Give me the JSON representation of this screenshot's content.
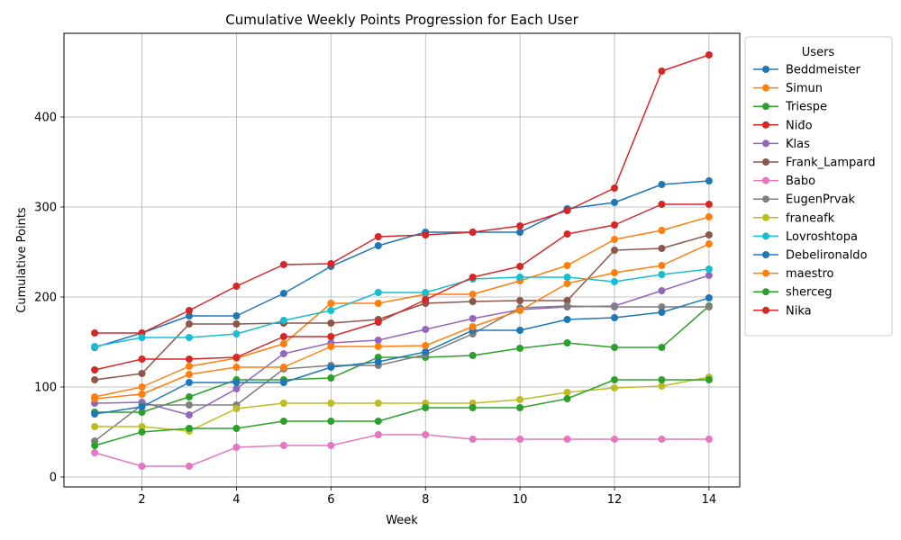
{
  "chart_data": {
    "type": "line",
    "title": "Cumulative Weekly Points Progression for Each User",
    "xlabel": "Week",
    "ylabel": "Cumulative Points",
    "x": [
      1,
      2,
      3,
      4,
      5,
      6,
      7,
      8,
      9,
      10,
      11,
      12,
      13,
      14
    ],
    "xlim": [
      0.35,
      14.65
    ],
    "ylim": [
      -11,
      493
    ],
    "xticks": [
      2,
      4,
      6,
      8,
      10,
      12,
      14
    ],
    "yticks": [
      0,
      100,
      200,
      300,
      400
    ],
    "grid": true,
    "legend": {
      "title": "Users",
      "placement": "outside-right"
    },
    "series": [
      {
        "name": "Beddmeister",
        "color": "#1f77b4",
        "values": [
          144,
          160,
          179,
          179,
          204,
          234,
          257,
          272,
          272,
          272,
          298,
          305,
          325,
          329
        ]
      },
      {
        "name": "Simun",
        "color": "#ff7f0e",
        "values": [
          89,
          100,
          123,
          132,
          148,
          193,
          193,
          203,
          203,
          218,
          235,
          264,
          274,
          289
        ]
      },
      {
        "name": "Triespe",
        "color": "#2ca02c",
        "values": [
          72,
          72,
          89,
          108,
          108,
          110,
          133,
          133,
          135,
          143,
          149,
          144,
          144,
          190
        ]
      },
      {
        "name": "Niđo",
        "color": "#d62728",
        "values": [
          160,
          160,
          185,
          212,
          236,
          237,
          267,
          269,
          272,
          279,
          296,
          321,
          451,
          469
        ]
      },
      {
        "name": "Klas",
        "color": "#9467bd",
        "values": [
          82,
          83,
          69,
          98,
          137,
          149,
          152,
          164,
          176,
          186,
          189,
          190,
          207,
          224
        ]
      },
      {
        "name": "Frank_Lampard",
        "color": "#8c564b",
        "values": [
          108,
          115,
          170,
          170,
          171,
          171,
          175,
          193,
          195,
          196,
          196,
          252,
          254,
          269
        ]
      },
      {
        "name": "Babo",
        "color": "#e377c2",
        "values": [
          27,
          12,
          12,
          33,
          35,
          35,
          47,
          47,
          42,
          42,
          42,
          42,
          42,
          42
        ]
      },
      {
        "name": "EugenPrvak",
        "color": "#7f7f7f",
        "values": [
          40,
          80,
          80,
          80,
          120,
          124,
          124,
          136,
          159,
          188,
          190,
          189,
          189,
          189
        ]
      },
      {
        "name": "franeafk",
        "color": "#bcbd22",
        "values": [
          56,
          56,
          51,
          76,
          82,
          82,
          82,
          82,
          82,
          86,
          94,
          99,
          101,
          111
        ]
      },
      {
        "name": "Lovroshtopa",
        "color": "#17becf",
        "values": [
          145,
          155,
          155,
          159,
          174,
          185,
          205,
          205,
          220,
          222,
          222,
          217,
          225,
          231
        ]
      },
      {
        "name": "Debelironaldo",
        "color": "#1f77b4",
        "values": [
          70,
          78,
          105,
          105,
          105,
          122,
          128,
          139,
          163,
          163,
          175,
          177,
          183,
          199
        ]
      },
      {
        "name": "maestro",
        "color": "#ff7f0e",
        "values": [
          87,
          92,
          114,
          122,
          122,
          145,
          145,
          146,
          167,
          185,
          215,
          227,
          235,
          259
        ]
      },
      {
        "name": "sherceg",
        "color": "#2ca02c",
        "values": [
          35,
          50,
          54,
          54,
          62,
          62,
          62,
          77,
          77,
          77,
          87,
          108,
          108,
          108
        ]
      },
      {
        "name": "Nika",
        "color": "#d62728",
        "values": [
          119,
          131,
          131,
          133,
          156,
          156,
          172,
          197,
          222,
          234,
          270,
          280,
          303,
          303
        ]
      }
    ]
  }
}
